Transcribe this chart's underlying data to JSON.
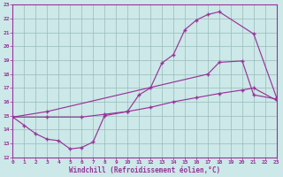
{
  "xlabel": "Windchill (Refroidissement éolien,°C)",
  "bg_color": "#cce8e8",
  "grid_color": "#99bbbb",
  "line_color": "#993399",
  "xlim": [
    0,
    23
  ],
  "ylim": [
    12,
    23
  ],
  "yticks": [
    12,
    13,
    14,
    15,
    16,
    17,
    18,
    19,
    20,
    21,
    22,
    23
  ],
  "xticks": [
    0,
    1,
    2,
    3,
    4,
    5,
    6,
    7,
    8,
    9,
    10,
    11,
    12,
    13,
    14,
    15,
    16,
    17,
    18,
    19,
    20,
    21,
    22,
    23
  ],
  "line1_x": [
    0,
    1,
    2,
    3,
    4,
    5,
    6,
    7,
    8,
    10,
    11,
    12,
    13,
    14,
    15,
    16,
    17,
    18,
    21,
    23
  ],
  "line1_y": [
    14.9,
    14.3,
    13.7,
    13.3,
    13.2,
    12.6,
    12.7,
    13.1,
    15.0,
    15.3,
    16.5,
    17.0,
    18.8,
    19.4,
    21.2,
    21.9,
    22.3,
    22.5,
    20.9,
    16.3
  ],
  "line2_x": [
    0,
    3,
    17,
    18,
    20,
    21,
    23
  ],
  "line2_y": [
    14.9,
    15.3,
    18.0,
    18.85,
    18.95,
    16.5,
    16.2
  ],
  "line3_x": [
    0,
    3,
    6,
    8,
    10,
    12,
    14,
    16,
    18,
    20,
    21,
    23
  ],
  "line3_y": [
    14.9,
    14.9,
    14.9,
    15.1,
    15.3,
    15.6,
    16.0,
    16.3,
    16.6,
    16.85,
    17.0,
    16.1
  ]
}
